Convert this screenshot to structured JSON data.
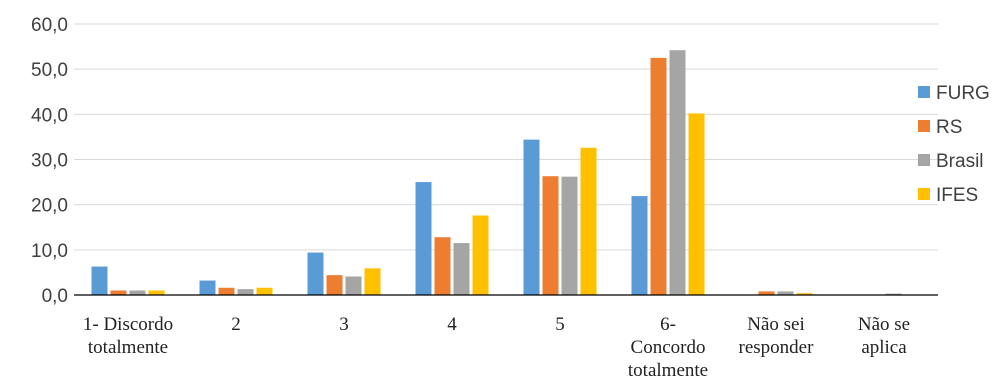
{
  "chart_data": {
    "type": "bar",
    "title": "",
    "xlabel": "",
    "ylabel": "",
    "categories": [
      [
        "1- Discordo",
        "totalmente"
      ],
      [
        "2"
      ],
      [
        "3"
      ],
      [
        "4"
      ],
      [
        "5"
      ],
      [
        "6-",
        "Concordo",
        "totalmente"
      ],
      [
        "Não sei",
        "responder"
      ],
      [
        "Não se",
        "aplica"
      ]
    ],
    "series": [
      {
        "name": "FURG",
        "color": "#5b9bd5",
        "values": [
          6.3,
          3.2,
          9.4,
          25.0,
          34.4,
          21.9,
          0.0,
          0.0
        ]
      },
      {
        "name": "RS",
        "color": "#ed7d31",
        "values": [
          1.0,
          1.6,
          4.4,
          12.8,
          26.3,
          52.5,
          0.8,
          0.0
        ]
      },
      {
        "name": "Brasil",
        "color": "#a5a5a5",
        "values": [
          1.0,
          1.3,
          4.1,
          11.5,
          26.2,
          54.2,
          0.8,
          0.3
        ]
      },
      {
        "name": "IFES",
        "color": "#ffc000",
        "values": [
          1.0,
          1.6,
          5.9,
          17.6,
          32.6,
          40.2,
          0.4,
          0.0
        ]
      }
    ],
    "ylim": [
      0,
      60
    ],
    "yticks": [
      "0,0",
      "10,0",
      "20,0",
      "30,0",
      "40,0",
      "50,0",
      "60,0"
    ],
    "grid": true,
    "legend": "right"
  }
}
